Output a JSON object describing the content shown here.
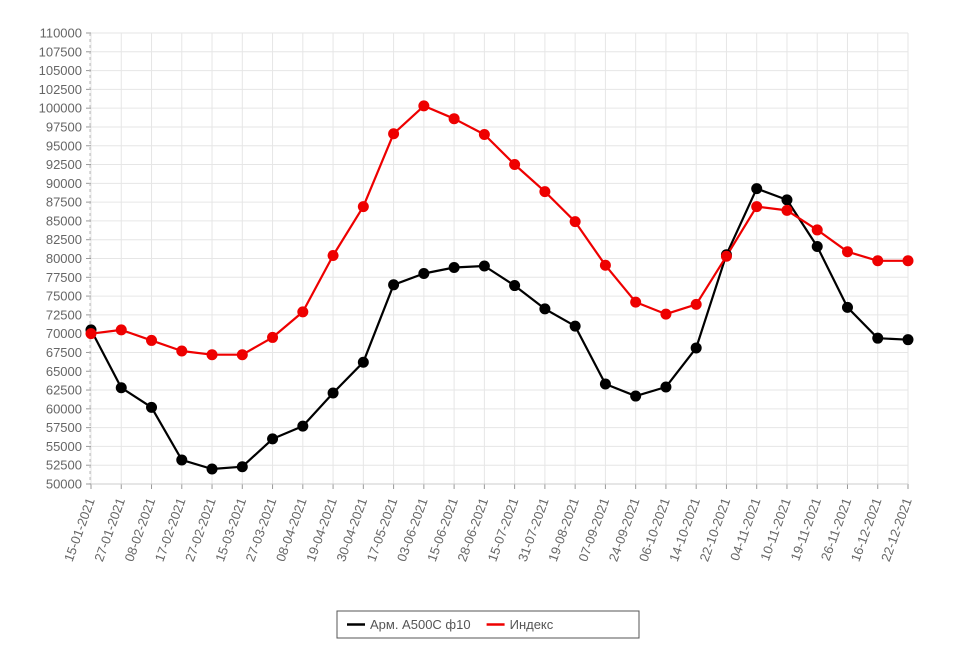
{
  "chart_data": {
    "type": "line",
    "categories": [
      "15-01-2021",
      "27-01-2021",
      "08-02-2021",
      "17-02-2021",
      "27-02-2021",
      "15-03-2021",
      "27-03-2021",
      "08-04-2021",
      "19-04-2021",
      "30-04-2021",
      "17-05-2021",
      "03-06-2021",
      "15-06-2021",
      "28-06-2021",
      "15-07-2021",
      "31-07-2021",
      "19-08-2021",
      "07-09-2021",
      "24-09-2021",
      "06-10-2021",
      "14-10-2021",
      "22-10-2021",
      "04-11-2021",
      "10-11-2021",
      "19-11-2021",
      "26-11-2021",
      "16-12-2021",
      "22-12-2021"
    ],
    "series": [
      {
        "name": "Арм. А500С ф10",
        "color": "#000000",
        "values": [
          70500,
          62800,
          60200,
          53200,
          52000,
          52300,
          56000,
          57700,
          62100,
          66200,
          76500,
          78000,
          78800,
          79000,
          76400,
          73300,
          71000,
          63300,
          61700,
          62900,
          68100,
          80500,
          89300,
          87800,
          81600,
          73500,
          69400,
          69200
        ]
      },
      {
        "name": "Индекс",
        "color": "#ee0000",
        "values": [
          70000,
          70500,
          69100,
          67700,
          67200,
          67200,
          69500,
          72900,
          80400,
          86900,
          96600,
          100300,
          98600,
          96500,
          92500,
          88900,
          84900,
          79100,
          74200,
          72600,
          73900,
          80300,
          86900,
          86400,
          83800,
          80900,
          79700,
          79700
        ]
      }
    ],
    "ylim": [
      50000,
      110000
    ],
    "ytick_step": 2500,
    "yticks": [
      "110000",
      "107500",
      "105000",
      "102500",
      "100000",
      "97500",
      "95000",
      "92500",
      "90000",
      "87500",
      "85000",
      "82500",
      "80000",
      "77500",
      "75000",
      "72500",
      "70000",
      "67500",
      "65000",
      "62500",
      "60000",
      "57500",
      "55000",
      "52500",
      "50000"
    ],
    "grid": true,
    "legend_position": "bottom-center",
    "title": "",
    "xlabel": "",
    "ylabel": ""
  }
}
